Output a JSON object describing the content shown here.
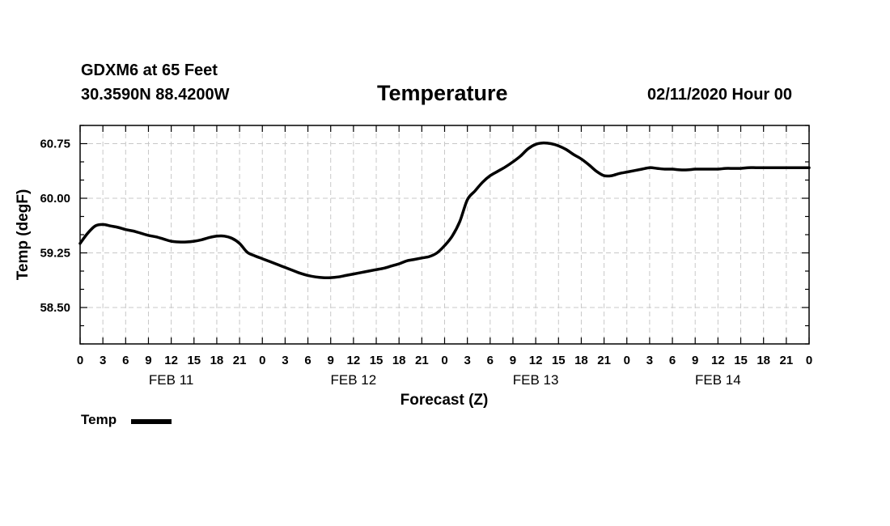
{
  "header": {
    "station": "GDXM6 at 65 Feet",
    "coords": "30.3590N 88.4200W",
    "datetime": "02/11/2020 Hour 00"
  },
  "chart_data": {
    "type": "line",
    "title": "Temperature",
    "xlabel": "Forecast (Z)",
    "ylabel": "Temp (degF)",
    "xlim": [
      0,
      96
    ],
    "ylim": [
      58.0,
      61.0
    ],
    "grid": true,
    "x_tick_labels": [
      "0",
      "3",
      "6",
      "9",
      "12",
      "15",
      "18",
      "21",
      "0",
      "3",
      "6",
      "9",
      "12",
      "15",
      "18",
      "21",
      "0",
      "3",
      "6",
      "9",
      "12",
      "15",
      "18",
      "21",
      "0",
      "3",
      "6",
      "9",
      "12",
      "15",
      "18",
      "21",
      "0"
    ],
    "y_tick_labels": [
      "58.50",
      "59.25",
      "60.00",
      "60.75"
    ],
    "y_ticks": [
      58.5,
      59.25,
      60.0,
      60.75
    ],
    "day_labels": [
      "FEB 11",
      "FEB 12",
      "FEB 13",
      "FEB 14"
    ],
    "series": [
      {
        "name": "Temp",
        "color": "#000000",
        "x": [
          0,
          1,
          2,
          3,
          4,
          5,
          6,
          7,
          8,
          9,
          10,
          11,
          12,
          13,
          14,
          15,
          16,
          17,
          18,
          19,
          20,
          21,
          22,
          23,
          24,
          25,
          26,
          27,
          28,
          29,
          30,
          31,
          32,
          33,
          34,
          35,
          36,
          37,
          38,
          39,
          40,
          41,
          42,
          43,
          44,
          45,
          46,
          47,
          48,
          49,
          50,
          51,
          52,
          53,
          54,
          55,
          56,
          57,
          58,
          59,
          60,
          61,
          62,
          63,
          64,
          65,
          66,
          67,
          68,
          69,
          70,
          71,
          72,
          73,
          74,
          75,
          76,
          77,
          78,
          79,
          80,
          81,
          82,
          83,
          84,
          85,
          86,
          87,
          88,
          89,
          90,
          91,
          92,
          93,
          94,
          95,
          96
        ],
        "values": [
          59.38,
          59.52,
          59.62,
          59.64,
          59.62,
          59.6,
          59.57,
          59.55,
          59.52,
          59.49,
          59.47,
          59.44,
          59.41,
          59.4,
          59.4,
          59.41,
          59.43,
          59.46,
          59.48,
          59.48,
          59.45,
          59.38,
          59.26,
          59.21,
          59.17,
          59.13,
          59.09,
          59.05,
          59.01,
          58.97,
          58.94,
          58.92,
          58.91,
          58.91,
          58.92,
          58.94,
          58.96,
          58.98,
          59.0,
          59.02,
          59.04,
          59.07,
          59.1,
          59.14,
          59.16,
          59.18,
          59.2,
          59.25,
          59.35,
          59.48,
          59.68,
          59.98,
          60.1,
          60.22,
          60.31,
          60.37,
          60.43,
          60.5,
          60.58,
          60.68,
          60.74,
          60.76,
          60.75,
          60.72,
          60.67,
          60.6,
          60.54,
          60.46,
          60.37,
          60.31,
          60.31,
          60.34,
          60.36,
          60.38,
          60.4,
          60.42,
          60.41,
          60.4,
          60.4,
          60.39,
          60.39,
          60.4,
          60.4,
          60.4,
          60.4,
          60.41,
          60.41,
          60.41,
          60.42,
          60.42,
          60.42,
          60.42,
          60.42,
          60.42,
          60.42,
          60.42,
          60.42
        ]
      }
    ]
  }
}
